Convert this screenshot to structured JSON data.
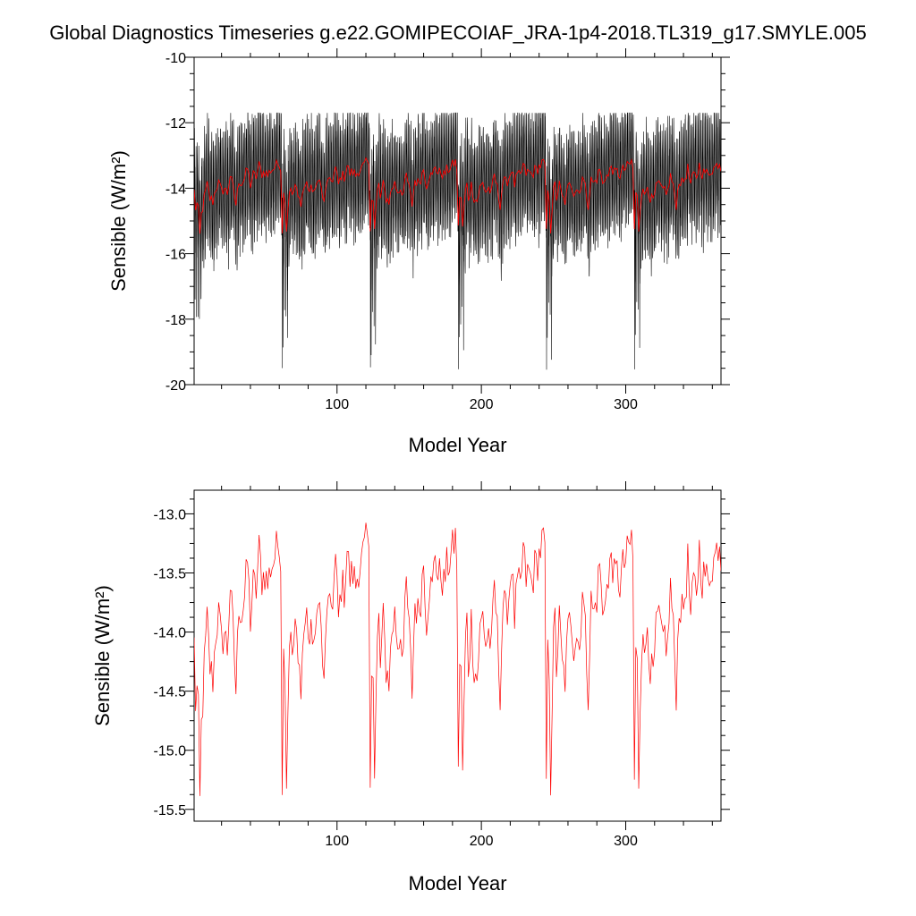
{
  "title": "Global Diagnostics Timeseries g.e22.GOMIPECOIAF_JRA-1p4-2018.TL319_g17.SMYLE.005",
  "colors": {
    "raw": "#000000",
    "annual": "#ff0000",
    "axis": "#000000"
  },
  "chart_data": [
    {
      "type": "line",
      "xlabel": "Model Year",
      "ylabel": "Sensible (W/m²)",
      "xlim": [
        1,
        366
      ],
      "ylim": [
        -20,
        -10
      ],
      "xticks": [
        100,
        200,
        300
      ],
      "yticks": [
        -20,
        -18,
        -16,
        -14,
        -12,
        -10
      ],
      "ytick_labels": [
        "-20",
        "-18",
        "-16",
        "-14",
        "-12",
        "-10"
      ],
      "series": [
        {
          "kind": "monthly",
          "color": "#000000",
          "cycle_length_years": 61,
          "annual_mean_range": [
            -15.4,
            -13.2
          ],
          "monthly_min": -19.6,
          "monthly_max": -11.7
        },
        {
          "kind": "annual",
          "color": "#ff0000",
          "same_as": "panel2"
        }
      ]
    },
    {
      "type": "line",
      "xlabel": "Model Year",
      "ylabel": "Sensible (W/m²)",
      "xlim": [
        1,
        366
      ],
      "ylim": [
        -15.6,
        -12.8
      ],
      "xticks": [
        100,
        200,
        300
      ],
      "yticks": [
        -15.5,
        -15.0,
        -14.5,
        -14.0,
        -13.5,
        -13.0
      ],
      "ytick_labels": [
        "-15.5",
        "-15.0",
        "-14.5",
        "-14.0",
        "-13.5",
        "-13.0"
      ],
      "series": [
        {
          "kind": "annual",
          "color": "#ff0000",
          "cycle_length_years": 61,
          "cycle_x": [
            1,
            2,
            3,
            4,
            5,
            6,
            7,
            8,
            9,
            10,
            12,
            14,
            16,
            18,
            20,
            22,
            24,
            26,
            28,
            30,
            32,
            34,
            36,
            38,
            40,
            42,
            44,
            46,
            48,
            50,
            52,
            54,
            56,
            58,
            60,
            61
          ],
          "cycle_y": [
            -14.1,
            -14.6,
            -14.5,
            -14.7,
            -15.45,
            -14.8,
            -14.6,
            -14.3,
            -14.1,
            -13.9,
            -14.3,
            -14.4,
            -14.0,
            -13.85,
            -14.1,
            -14.0,
            -14.15,
            -13.6,
            -14.0,
            -14.5,
            -13.75,
            -13.85,
            -13.7,
            -13.4,
            -13.9,
            -13.6,
            -13.65,
            -13.3,
            -13.55,
            -13.5,
            -13.6,
            -13.45,
            -13.4,
            -13.3,
            -13.2,
            -13.4
          ],
          "cycle_reset_y": [
            -15.25,
            -14.2,
            -14.3,
            -15.25,
            -14.6,
            -14.1,
            -13.9
          ],
          "x_end": 366
        }
      ]
    }
  ]
}
